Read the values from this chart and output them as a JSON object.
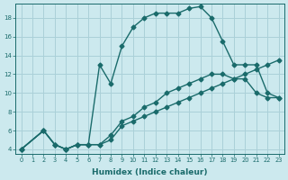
{
  "xlabel": "Humidex (Indice chaleur)",
  "ylabel": "",
  "bg_color": "#cce9ee",
  "grid_color": "#aad0d8",
  "line_color": "#1a6b6b",
  "xlim": [
    -0.5,
    23.5
  ],
  "ylim": [
    3.5,
    19.5
  ],
  "xticks": [
    0,
    1,
    2,
    3,
    4,
    5,
    6,
    7,
    8,
    9,
    10,
    11,
    12,
    13,
    14,
    15,
    16,
    17,
    18,
    19,
    20,
    21,
    22,
    23
  ],
  "yticks": [
    4,
    6,
    8,
    10,
    12,
    14,
    16,
    18
  ],
  "line1_x": [
    0,
    2,
    3,
    4,
    5,
    6,
    7,
    8,
    9,
    10,
    11,
    12,
    13,
    14,
    15,
    16,
    17,
    18,
    19,
    20,
    21,
    22,
    23
  ],
  "line1_y": [
    4,
    6,
    4.5,
    4,
    4.5,
    4.5,
    4.5,
    5,
    6.5,
    7,
    7.5,
    8,
    8.5,
    9,
    9.5,
    10,
    10.5,
    11,
    11.5,
    12,
    12.5,
    13,
    13.5
  ],
  "line2_x": [
    0,
    2,
    3,
    4,
    5,
    6,
    7,
    8,
    9,
    10,
    11,
    12,
    13,
    14,
    15,
    16,
    17,
    18,
    19,
    20,
    21,
    22,
    23
  ],
  "line2_y": [
    4,
    6,
    4.5,
    4,
    4.5,
    4.5,
    4.5,
    5.5,
    7,
    7.5,
    8.5,
    9,
    10,
    10.5,
    11,
    11.5,
    12,
    12,
    11.5,
    11.5,
    10,
    9.5,
    9.5
  ],
  "line3_x": [
    0,
    2,
    3,
    4,
    5,
    6,
    7,
    8,
    9,
    10,
    11,
    12,
    13,
    14,
    15,
    16,
    17,
    18,
    19,
    20,
    21,
    22,
    23
  ],
  "line3_y": [
    4,
    6,
    4.5,
    4,
    4.5,
    4.5,
    13,
    11,
    15,
    17,
    18,
    18.5,
    18.5,
    18.5,
    19,
    19.2,
    18,
    15.5,
    13,
    13,
    13,
    10,
    9.5
  ],
  "marker": "D",
  "markersize": 2.5,
  "linewidth": 1.0
}
